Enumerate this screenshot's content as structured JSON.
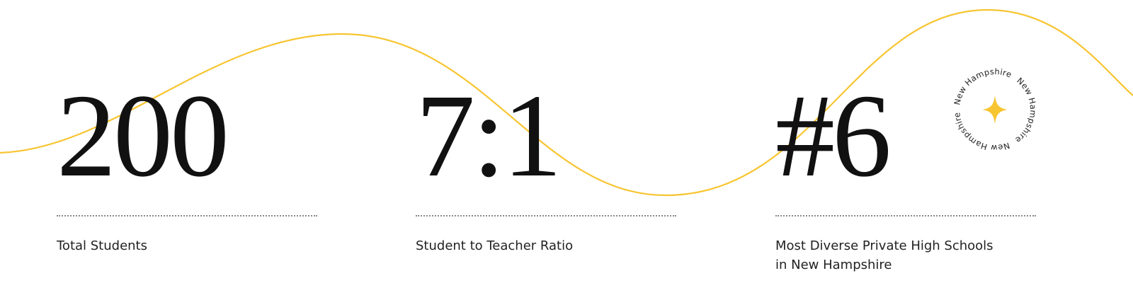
{
  "stats": [
    {
      "value": "200",
      "label": "Total Students"
    },
    {
      "value": "7:1",
      "label": "Student to Teacher Ratio"
    },
    {
      "value": "#6",
      "label": "Most Diverse Private High Schools in New Hampshire"
    }
  ],
  "badge": {
    "ring": [
      "New Hampshire",
      "New Hampshire",
      "New Hampshire"
    ]
  }
}
